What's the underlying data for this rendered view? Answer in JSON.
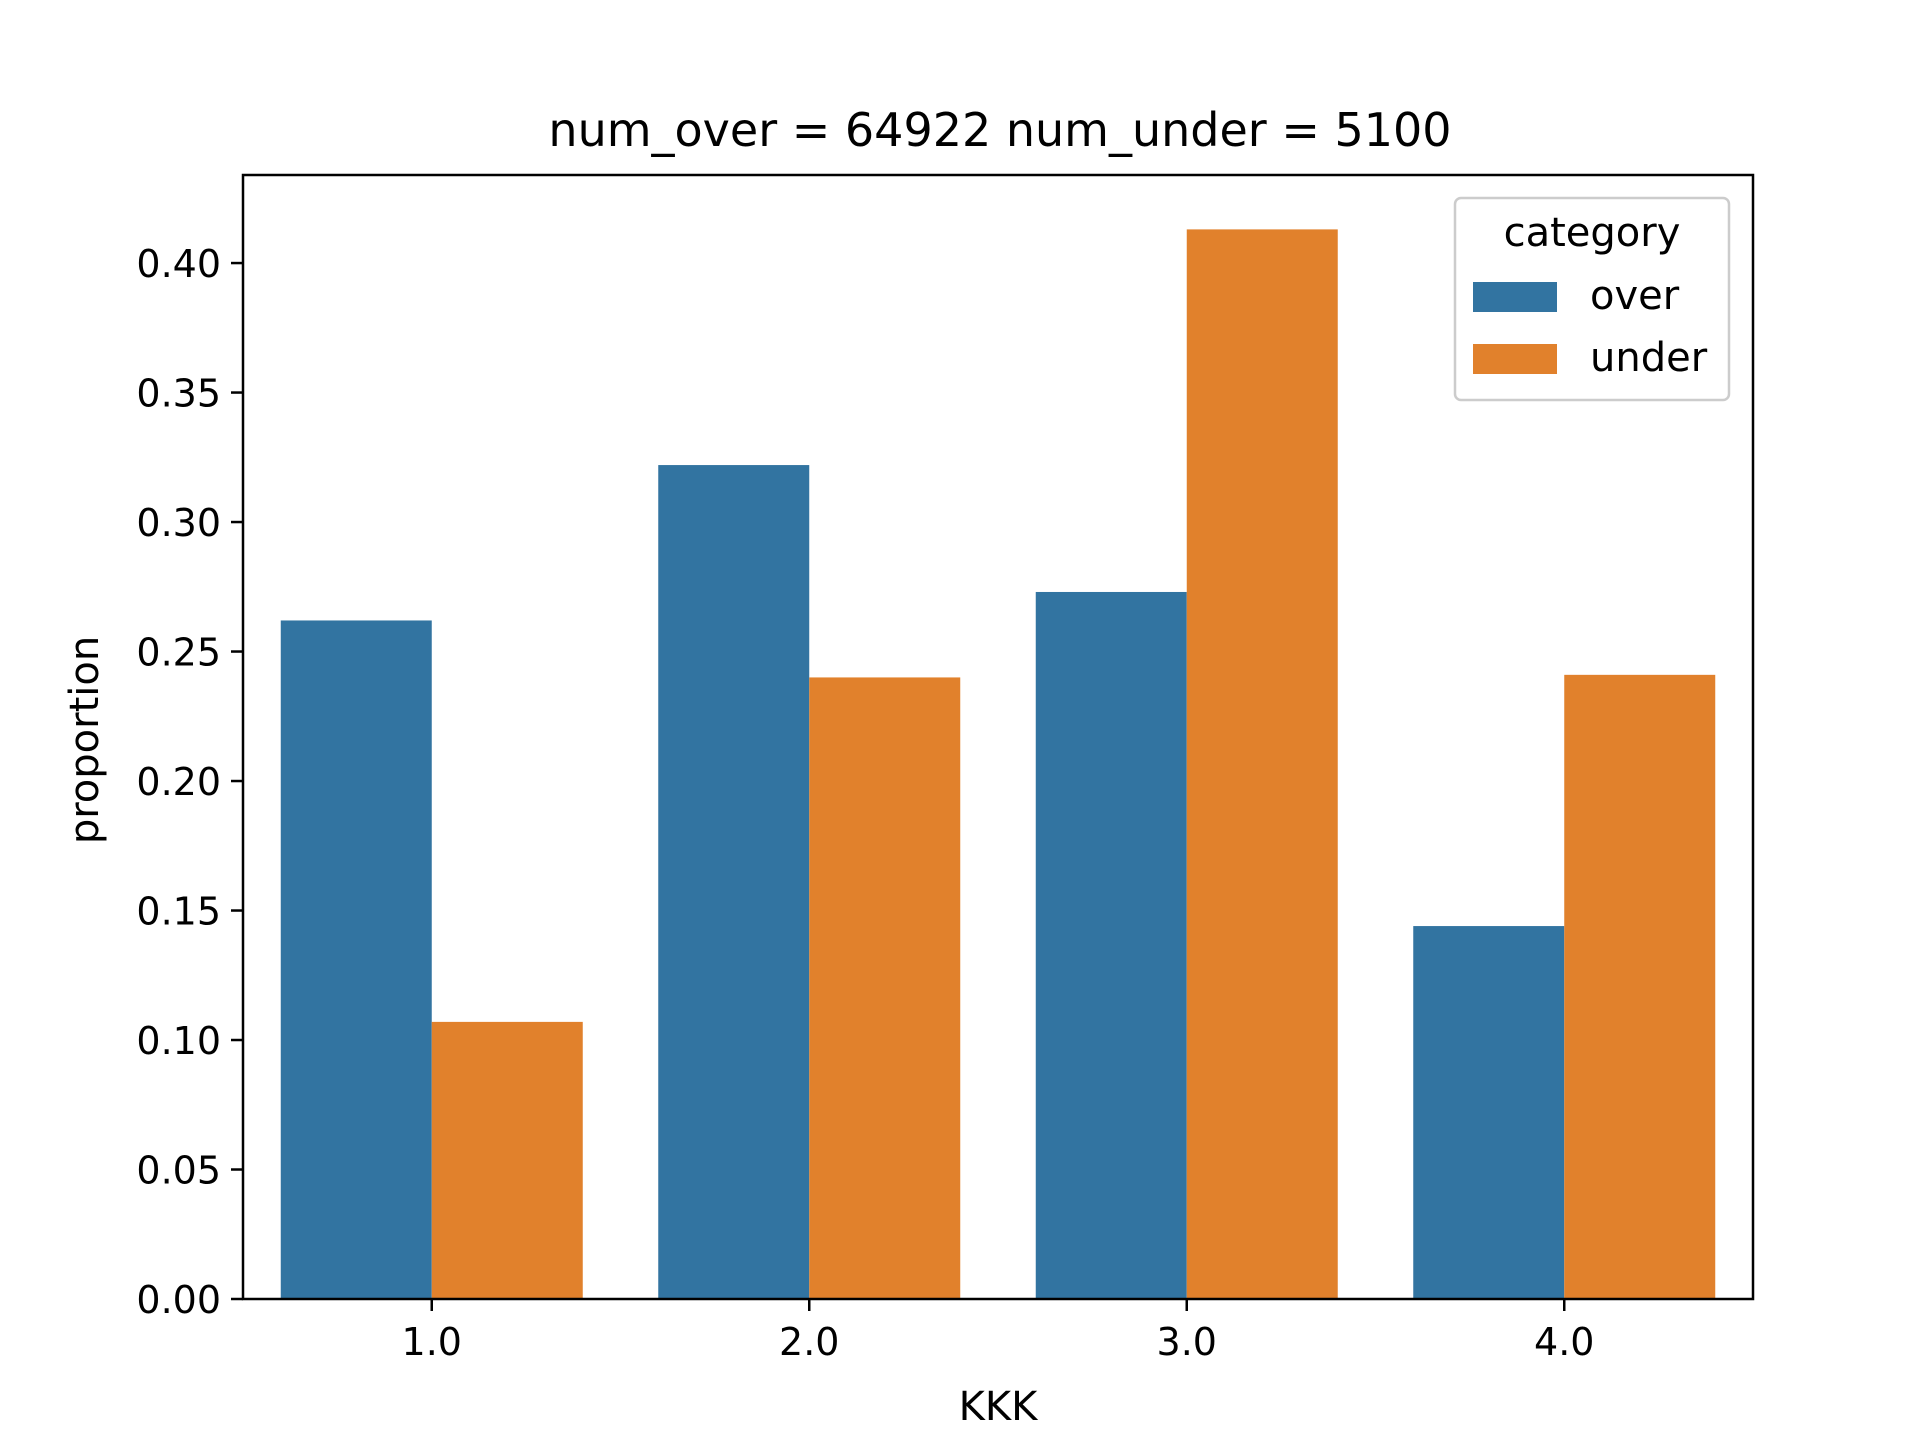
{
  "chart_data": {
    "type": "bar",
    "title": "num_over = 64922  num_under = 5100",
    "xlabel": "KKK",
    "ylabel": "proportion",
    "categories": [
      "1.0",
      "2.0",
      "3.0",
      "4.0"
    ],
    "series": [
      {
        "name": "over",
        "values": [
          0.262,
          0.322,
          0.273,
          0.144
        ],
        "color": "#3274a1"
      },
      {
        "name": "under",
        "values": [
          0.107,
          0.24,
          0.413,
          0.241
        ],
        "color": "#e1812c"
      }
    ],
    "ylim": [
      0,
      0.434
    ],
    "yticks": [
      "0.00",
      "0.05",
      "0.10",
      "0.15",
      "0.20",
      "0.25",
      "0.30",
      "0.35",
      "0.40"
    ],
    "legend": {
      "title": "category",
      "placement": "top-right"
    },
    "grid": false
  }
}
